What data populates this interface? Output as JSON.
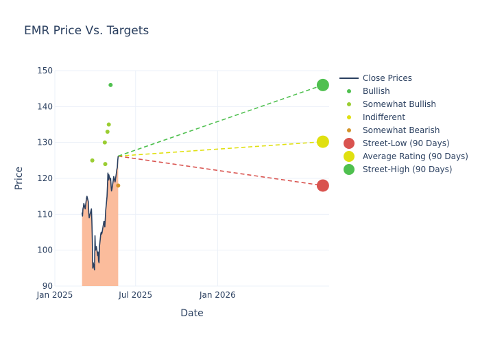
{
  "chart_data": {
    "type": "line",
    "title": "EMR Price Vs. Targets",
    "xlabel": "Date",
    "ylabel": "Price",
    "xlim": [
      "2025-01-01",
      "2026-09-08"
    ],
    "ylim": [
      90,
      150
    ],
    "x_ticks": [
      "2025-01-01",
      "2025-07-01",
      "2026-01-01"
    ],
    "x_tick_labels": [
      "Jan 2025",
      "Jul 2025",
      "Jan 2026"
    ],
    "y_ticks": [
      90,
      100,
      110,
      120,
      130,
      140,
      150
    ],
    "grid": true,
    "legend_position": "right",
    "close_prices": {
      "name": "Close Prices",
      "color": "#2a3f5f",
      "fill_color": "#fbbc9c",
      "points": [
        [
          "2025-03-03",
          110.5
        ],
        [
          "2025-03-04",
          109.5
        ],
        [
          "2025-03-05",
          111.5
        ],
        [
          "2025-03-06",
          112.0
        ],
        [
          "2025-03-07",
          113.0
        ],
        [
          "2025-03-10",
          111.5
        ],
        [
          "2025-03-11",
          112.5
        ],
        [
          "2025-03-12",
          113.5
        ],
        [
          "2025-03-13",
          114.5
        ],
        [
          "2025-03-14",
          115.0
        ],
        [
          "2025-03-17",
          113.5
        ],
        [
          "2025-03-18",
          110.5
        ],
        [
          "2025-03-19",
          109.0
        ],
        [
          "2025-03-20",
          109.5
        ],
        [
          "2025-03-21",
          110.0
        ],
        [
          "2025-03-24",
          111.5
        ],
        [
          "2025-03-25",
          108.0
        ],
        [
          "2025-03-26",
          103.0
        ],
        [
          "2025-03-27",
          95.0
        ],
        [
          "2025-03-28",
          96.5
        ],
        [
          "2025-03-31",
          94.5
        ],
        [
          "2025-04-01",
          104.0
        ],
        [
          "2025-04-02",
          100.0
        ],
        [
          "2025-04-03",
          100.5
        ],
        [
          "2025-04-04",
          101.0
        ],
        [
          "2025-04-07",
          98.5
        ],
        [
          "2025-04-08",
          99.5
        ],
        [
          "2025-04-09",
          97.0
        ],
        [
          "2025-04-10",
          96.5
        ],
        [
          "2025-04-11",
          101.0
        ],
        [
          "2025-04-14",
          104.5
        ],
        [
          "2025-04-15",
          105.0
        ],
        [
          "2025-04-16",
          104.5
        ],
        [
          "2025-04-17",
          105.0
        ],
        [
          "2025-04-21",
          108.0
        ],
        [
          "2025-04-22",
          108.0
        ],
        [
          "2025-04-23",
          106.5
        ],
        [
          "2025-04-24",
          108.5
        ],
        [
          "2025-04-25",
          111.0
        ],
        [
          "2025-04-28",
          115.0
        ],
        [
          "2025-04-29",
          118.0
        ],
        [
          "2025-04-30",
          121.5
        ],
        [
          "2025-05-01",
          119.5
        ],
        [
          "2025-05-02",
          121.0
        ],
        [
          "2025-05-05",
          119.5
        ],
        [
          "2025-05-06",
          120.0
        ],
        [
          "2025-05-07",
          118.0
        ],
        [
          "2025-05-08",
          116.5
        ],
        [
          "2025-05-09",
          117.0
        ],
        [
          "2025-05-12",
          119.5
        ],
        [
          "2025-05-13",
          120.5
        ],
        [
          "2025-05-14",
          120.0
        ],
        [
          "2025-05-15",
          119.5
        ],
        [
          "2025-05-16",
          119.0
        ],
        [
          "2025-05-19",
          121.5
        ],
        [
          "2025-05-20",
          122.5
        ],
        [
          "2025-05-21",
          123.0
        ],
        [
          "2025-05-22",
          125.0
        ],
        [
          "2025-05-23",
          126.2
        ]
      ]
    },
    "analyst_ratings": [
      {
        "name": "Bullish",
        "color": "#4fc04f",
        "points": [
          [
            "2025-05-06",
            146
          ]
        ]
      },
      {
        "name": "Somewhat Bullish",
        "color": "#9acd32",
        "points": [
          [
            "2025-03-26",
            125
          ],
          [
            "2025-04-23",
            130
          ],
          [
            "2025-04-24",
            124
          ],
          [
            "2025-04-29",
            133
          ],
          [
            "2025-05-02",
            135
          ]
        ]
      },
      {
        "name": "Indifferent",
        "color": "#e0e010",
        "points": []
      },
      {
        "name": "Somewhat Bearish",
        "color": "#d4952a",
        "points": [
          [
            "2025-05-23",
            118
          ]
        ]
      }
    ],
    "targets": [
      {
        "name": "Street-Low (90 Days)",
        "color": "#d9534f",
        "start": [
          "2025-05-23",
          126.2
        ],
        "end": [
          "2026-08-25",
          118
        ]
      },
      {
        "name": "Average Rating (90 Days)",
        "color": "#e0e010",
        "start": [
          "2025-05-23",
          126.2
        ],
        "end": [
          "2026-08-25",
          130.2
        ]
      },
      {
        "name": "Street-High (90 Days)",
        "color": "#4fc04f",
        "start": [
          "2025-05-23",
          126.2
        ],
        "end": [
          "2026-08-25",
          146
        ]
      }
    ]
  }
}
